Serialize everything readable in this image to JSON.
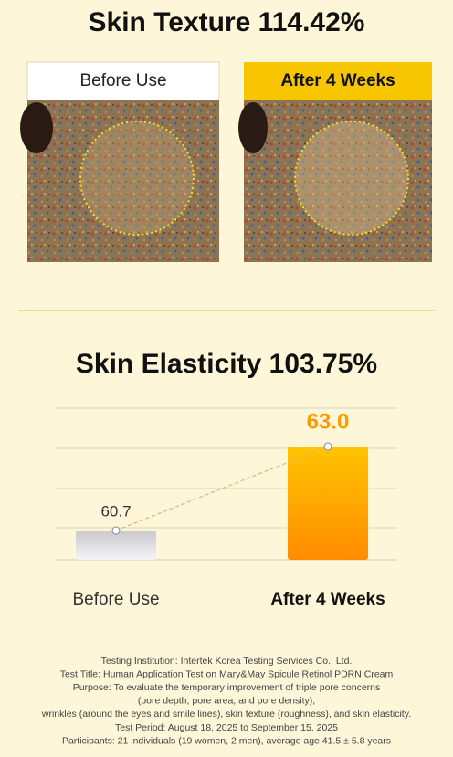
{
  "texture": {
    "title": "Skin Texture 114.42%",
    "panels": [
      {
        "label": "Before Use"
      },
      {
        "label": "After 4 Weeks"
      }
    ]
  },
  "chart_data": {
    "type": "bar",
    "title": "Skin Elasticity 103.75%",
    "categories": [
      "Before Use",
      "After 4 Weeks"
    ],
    "values": [
      60.7,
      63.0
    ],
    "value_labels": [
      "60.7",
      "63.0"
    ],
    "colors": [
      "#d9d9de",
      "#ff9a00"
    ],
    "ylim": [
      59.9,
      64.1
    ]
  },
  "footnote": [
    "Testing Institution: Intertek Korea Testing Services Co., Ltd.",
    "Test Title: Human Application Test on Mary&May Spicule Retinol PDRN Cream",
    "Purpose: To evaluate the temporary improvement of triple pore concerns",
    "(pore depth, pore area, and pore density),",
    "wrinkles (around the eyes and smile lines), skin texture (roughness), and skin elasticity.",
    "Test Period: August 18, 2025 to September 15, 2025",
    "Participants: 21 individuals (19 women, 2 men), average age 41.5 ± 5.8 years"
  ]
}
